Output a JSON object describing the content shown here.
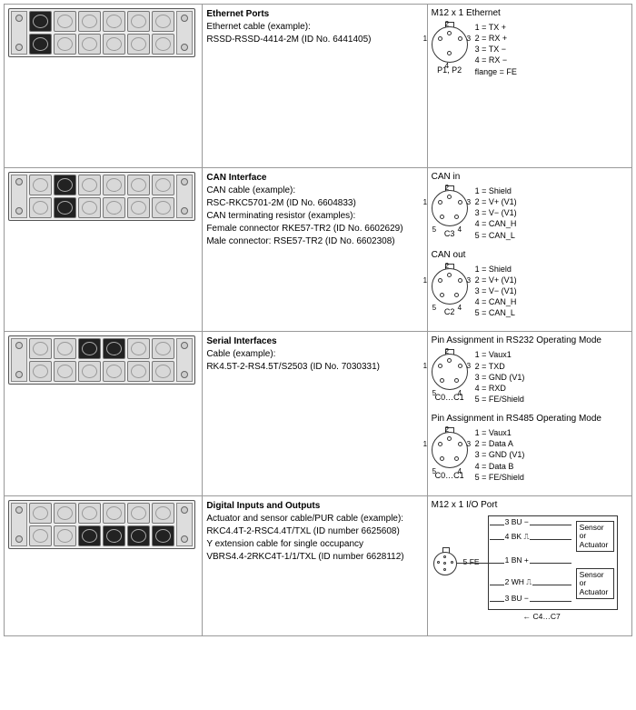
{
  "rows": [
    {
      "title": "Ethernet Ports",
      "desc": [
        "Ethernet cable (example):",
        "RSSD-RSSD-4414-2M (ID No. 6441405)"
      ],
      "highlight": [
        0,
        6
      ],
      "pin_sections": [
        {
          "heading": "M12 x 1 Ethernet",
          "caption": "P1, P2",
          "style": "m12-4",
          "pins": [
            "1 = TX +",
            "2 = RX +",
            "3 = TX −",
            "4 = RX −",
            "flange = FE"
          ]
        }
      ]
    },
    {
      "title": "CAN Interface",
      "desc": [
        "CAN cable (example):",
        "RSC-RKC5701-2M (ID No. 6604833)",
        "CAN terminating resistor (examples):",
        "Female connector RKE57-TR2 (ID No. 6602629)",
        "Male connector: RSE57-TR2 (ID No. 6602308)"
      ],
      "highlight": [
        1,
        7
      ],
      "pin_sections": [
        {
          "heading": "CAN in",
          "caption": "C3",
          "style": "m12-5",
          "pins": [
            "1 = Shield",
            "2 = V+ (V1)",
            "3 = V− (V1)",
            "4 = CAN_H",
            "5 = CAN_L"
          ]
        },
        {
          "heading": "CAN out",
          "caption": "C2",
          "style": "m12-5",
          "pins": [
            "1 = Shield",
            "2 = V+ (V1)",
            "3 = V− (V1)",
            "4 = CAN_H",
            "5 = CAN_L"
          ]
        }
      ]
    },
    {
      "title": "Serial Interfaces",
      "desc": [
        "Cable (example):",
        "RK4.5T-2-RS4.5T/S2503 (ID No. 7030331)"
      ],
      "highlight": [
        2,
        3
      ],
      "pin_sections": [
        {
          "heading": "Pin Assignment in RS232 Operating Mode",
          "caption": "C0…C1",
          "style": "m12-5",
          "pins": [
            "1 = Vaux1",
            "2 = TXD",
            "3 = GND (V1)",
            "4 = RXD",
            "5 = FE/Shield"
          ]
        },
        {
          "heading": "Pin Assignment in RS485 Operating Mode",
          "caption": "C0…C1",
          "style": "m12-5",
          "pins": [
            "1 = Vaux1",
            "2 = Data A",
            "3 = GND (V1)",
            "4 = Data B",
            "5 = FE/Shield"
          ]
        }
      ]
    },
    {
      "title": "Digital Inputs and Outputs",
      "desc": [
        "Actuator and sensor cable/PUR cable (example):",
        "RKC4.4T-2-RSC4.4T/TXL (ID number 6625608)",
        "Y extension cable for single occupancy",
        "VBRS4.4-2RKC4T-1/1/TXL (ID number 6628112)"
      ],
      "highlight": [
        8,
        9,
        10,
        11
      ],
      "pin_sections": [
        {
          "heading": "M12 x 1 I/O Port",
          "style": "io"
        }
      ],
      "io": {
        "fe": "5 FE",
        "w1": "3 BU −",
        "w2": "4 BK ⎍",
        "w3": "1 BN +",
        "w4": "2 WH ⎍",
        "w5": "3 BU −",
        "box": "Sensor\nor\nActuator",
        "caption": "← C4…C7"
      }
    }
  ]
}
